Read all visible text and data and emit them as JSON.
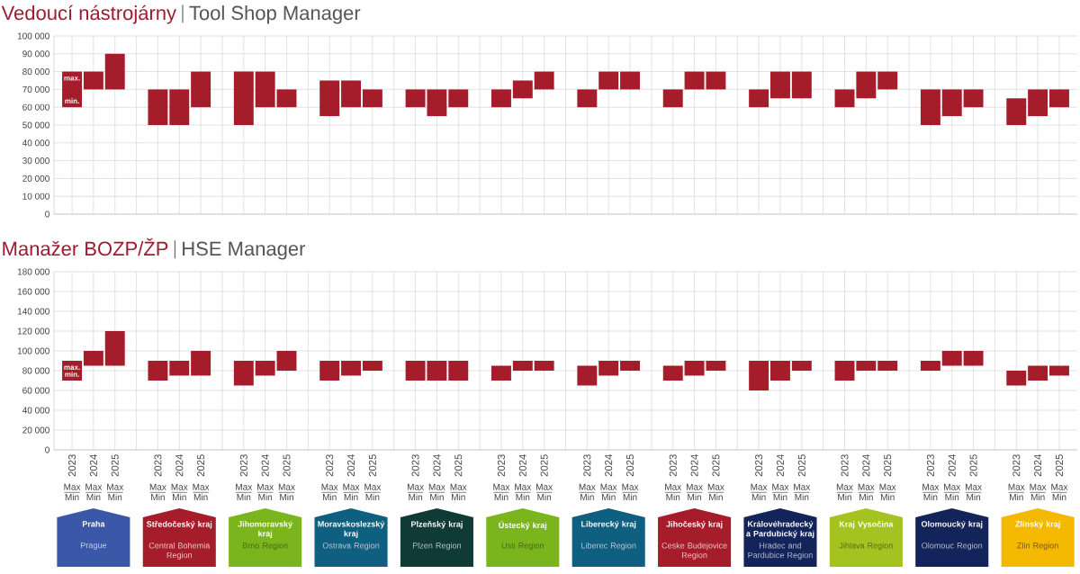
{
  "chart_data": [
    {
      "type": "bar",
      "title": "Vedoucí nástrojárny",
      "subtitle": "Tool Shop Manager",
      "categories": [
        "2023",
        "2024",
        "2025",
        null,
        "2023",
        "2024",
        "2025",
        null,
        "2023",
        "2024",
        "2025",
        null,
        "2023",
        "2024",
        "2025",
        null,
        "2023",
        "2024",
        "2025",
        null,
        "2023",
        "2024",
        "2025",
        null,
        "2023",
        "2024",
        "2025",
        null,
        "2023",
        "2024",
        "2025",
        null,
        "2023",
        "2024",
        "2025",
        null,
        "2023",
        "2024",
        "2025",
        null,
        "2023",
        "2024",
        "2025",
        null,
        "2023",
        "2024",
        "2025"
      ],
      "base": [
        60000,
        70000,
        70000,
        null,
        50000,
        50000,
        60000,
        null,
        50000,
        60000,
        60000,
        null,
        55000,
        60000,
        60000,
        null,
        60000,
        55000,
        60000,
        null,
        60000,
        65000,
        70000,
        null,
        60000,
        70000,
        70000,
        null,
        60000,
        70000,
        70000,
        null,
        60000,
        65000,
        65000,
        null,
        60000,
        65000,
        70000,
        null,
        50000,
        55000,
        60000,
        null,
        50000,
        55000,
        60000
      ],
      "values": [
        20000,
        10000,
        20000,
        null,
        20000,
        20000,
        20000,
        null,
        30000,
        20000,
        10000,
        null,
        20000,
        15000,
        10000,
        null,
        10000,
        15000,
        10000,
        null,
        10000,
        10000,
        10000,
        null,
        10000,
        10000,
        10000,
        null,
        10000,
        10000,
        10000,
        null,
        10000,
        15000,
        15000,
        null,
        10000,
        15000,
        10000,
        null,
        20000,
        15000,
        10000,
        null,
        15000,
        15000,
        10000
      ],
      "color": "#a51c2a",
      "ylim": [
        0,
        100000
      ],
      "yticks": [
        0,
        {
          "value": 10000,
          "label": "10 000"
        },
        {
          "value": 20000,
          "label": "20 000"
        },
        {
          "value": 30000,
          "label": "30 000"
        },
        {
          "value": 40000,
          "label": "40 000"
        },
        {
          "value": 50000,
          "label": "50 000"
        },
        {
          "value": 60000,
          "label": "60 000"
        },
        {
          "value": 70000,
          "label": "70 000"
        },
        {
          "value": 80000,
          "label": "80 000"
        },
        {
          "value": 90000,
          "label": "90 000"
        },
        {
          "value": 100000,
          "label": "100 000"
        }
      ],
      "grid": true,
      "tick_labels": "y",
      "annotations": [
        "max.",
        "min."
      ]
    },
    {
      "type": "bar",
      "title": "Manažer BOZP/ŽP",
      "subtitle": "HSE Manager",
      "categories": [
        "2023",
        "2024",
        "2025",
        null,
        "2023",
        "2024",
        "2025",
        null,
        "2023",
        "2024",
        "2025",
        null,
        "2023",
        "2024",
        "2025",
        null,
        "2023",
        "2024",
        "2025",
        null,
        "2023",
        "2024",
        "2025",
        null,
        "2023",
        "2024",
        "2025",
        null,
        "2023",
        "2024",
        "2025",
        null,
        "2023",
        "2024",
        "2025",
        null,
        "2023",
        "2024",
        "2025",
        null,
        "2023",
        "2024",
        "2025",
        null,
        "2023",
        "2024",
        "2025"
      ],
      "base": [
        70000,
        85000,
        85000,
        null,
        70000,
        75000,
        75000,
        null,
        65000,
        75000,
        80000,
        null,
        70000,
        75000,
        80000,
        null,
        70000,
        70000,
        70000,
        null,
        70000,
        80000,
        80000,
        null,
        65000,
        75000,
        80000,
        null,
        70000,
        75000,
        80000,
        null,
        60000,
        70000,
        80000,
        null,
        70000,
        80000,
        80000,
        null,
        80000,
        85000,
        85000,
        null,
        65000,
        70000,
        75000
      ],
      "values": [
        20000,
        15000,
        35000,
        null,
        20000,
        15000,
        25000,
        null,
        25000,
        15000,
        20000,
        null,
        20000,
        15000,
        10000,
        null,
        20000,
        20000,
        20000,
        null,
        15000,
        10000,
        10000,
        null,
        20000,
        15000,
        10000,
        null,
        15000,
        15000,
        10000,
        null,
        30000,
        20000,
        10000,
        null,
        20000,
        10000,
        10000,
        null,
        10000,
        15000,
        15000,
        null,
        15000,
        15000,
        10000
      ],
      "color": "#a51c2a",
      "ylim": [
        0,
        180000
      ],
      "yticks": [
        0,
        {
          "value": 20000,
          "label": "20 000"
        },
        {
          "value": 40000,
          "label": "40 000"
        },
        {
          "value": 60000,
          "label": "60 000"
        },
        {
          "value": 80000,
          "label": "80 000"
        },
        {
          "value": 100000,
          "label": "100 000"
        },
        {
          "value": 120000,
          "label": "120 000"
        },
        {
          "value": 140000,
          "label": "140 000"
        },
        {
          "value": 160000,
          "label": "160 000"
        },
        {
          "value": 180000,
          "label": "180 000"
        }
      ],
      "grid": true,
      "annotations": [
        "max.",
        "min.",
        "Max",
        "Min",
        "Praha",
        "Prague",
        "Středočeský kraj",
        "Central Bohemia Region",
        "Jihomoravský kraj",
        "Brno Region",
        "Moravskoslezský kraj",
        "Ostrava Region",
        "Plzeňský kraj",
        "Plzen Region",
        "Ústecký kraj",
        "Usti Region",
        "Liberecký kraj",
        "Liberec Region",
        "Jihočeský kraj",
        "Ceske Budejovice Region",
        "Královéhradecký a Pardubický kraj",
        "Hradec and Pardubice Region",
        "Kraj Vysočina",
        "Jihlava Region",
        "Olomoucký kraj",
        "Olomouc Region",
        "Zlínský kraj",
        "Zlin Region"
      ]
    }
  ]
}
